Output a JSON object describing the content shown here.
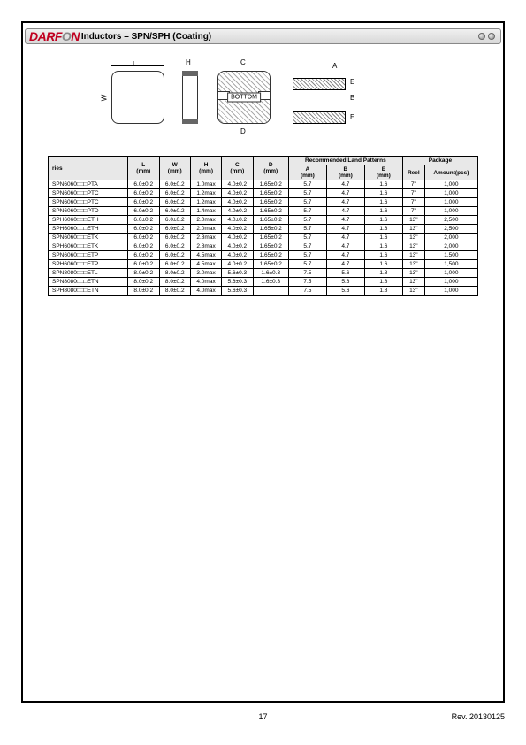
{
  "header": {
    "logo_text_pre": "DARF",
    "logo_text_o": "O",
    "logo_text_post": "N",
    "title": "Inductors – SPN/SPH (Coating)"
  },
  "diagram": {
    "labels": {
      "L": "L",
      "W": "W",
      "H": "H",
      "C": "C",
      "D": "D",
      "A": "A",
      "B": "B",
      "E": "E"
    },
    "bottom_text": "BOTTOM"
  },
  "table": {
    "headers": {
      "ries": "ries",
      "L": "L\n(mm)",
      "W": "W\n(mm)",
      "H": "H\n(mm)",
      "C": "C\n(mm)",
      "D": "D\n(mm)",
      "land_group": "Recommended Land Patterns",
      "A": "A\n(mm)",
      "B": "B\n(mm)",
      "E": "E\n(mm)",
      "pkg_group": "Package",
      "Reel": "Reel",
      "Amount": "Amount(pcs)"
    },
    "rows": [
      {
        "ries": "SPN6060□□□PTA",
        "L": "6.0±0.2",
        "W": "6.0±0.2",
        "H": "1.0max",
        "C": "4.0±0.2",
        "D": "1.65±0.2",
        "A": "5.7",
        "B": "4.7",
        "E": "1.6",
        "Reel": "7\"",
        "Amount": "1,000"
      },
      {
        "ries": "SPN6060□□□PTC",
        "L": "6.0±0.2",
        "W": "6.0±0.2",
        "H": "1.2max",
        "C": "4.0±0.2",
        "D": "1.65±0.2",
        "A": "5.7",
        "B": "4.7",
        "E": "1.6",
        "Reel": "7\"",
        "Amount": "1,000"
      },
      {
        "ries": "SPN6060□□□PTC",
        "L": "6.0±0.2",
        "W": "6.0±0.2",
        "H": "1.2max",
        "C": "4.0±0.2",
        "D": "1.65±0.2",
        "A": "5.7",
        "B": "4.7",
        "E": "1.6",
        "Reel": "7\"",
        "Amount": "1,000"
      },
      {
        "ries": "SPN6060□□□PTD",
        "L": "6.0±0.2",
        "W": "6.0±0.2",
        "H": "1.4max",
        "C": "4.0±0.2",
        "D": "1.65±0.2",
        "A": "5.7",
        "B": "4.7",
        "E": "1.6",
        "Reel": "7\"",
        "Amount": "1,000"
      },
      {
        "ries": "SPH6060□□□ETH",
        "L": "6.0±0.2",
        "W": "6.0±0.2",
        "H": "2.0max",
        "C": "4.0±0.2",
        "D": "1.65±0.2",
        "A": "5.7",
        "B": "4.7",
        "E": "1.6",
        "Reel": "13\"",
        "Amount": "2,500"
      },
      {
        "ries": "SPH6060□□□ETH",
        "L": "6.0±0.2",
        "W": "6.0±0.2",
        "H": "2.0max",
        "C": "4.0±0.2",
        "D": "1.65±0.2",
        "A": "5.7",
        "B": "4.7",
        "E": "1.6",
        "Reel": "13\"",
        "Amount": "2,500"
      },
      {
        "ries": "SPN6060□□□ETK",
        "L": "6.0±0.2",
        "W": "6.0±0.2",
        "H": "2.8max",
        "C": "4.0±0.2",
        "D": "1.65±0.2",
        "A": "5.7",
        "B": "4.7",
        "E": "1.6",
        "Reel": "13\"",
        "Amount": "2,000"
      },
      {
        "ries": "SPH6060□□□ETK",
        "L": "6.0±0.2",
        "W": "6.0±0.2",
        "H": "2.8max",
        "C": "4.0±0.2",
        "D": "1.65±0.2",
        "A": "5.7",
        "B": "4.7",
        "E": "1.6",
        "Reel": "13\"",
        "Amount": "2,000"
      },
      {
        "ries": "SPN6060□□□ETP",
        "L": "6.0±0.2",
        "W": "6.0±0.2",
        "H": "4.5max",
        "C": "4.0±0.2",
        "D": "1.65±0.2",
        "A": "5.7",
        "B": "4.7",
        "E": "1.6",
        "Reel": "13\"",
        "Amount": "1,500"
      },
      {
        "ries": "SPH6060□□□ETP",
        "L": "6.0±0.2",
        "W": "6.0±0.2",
        "H": "4.5max",
        "C": "4.0±0.2",
        "D": "1.65±0.2",
        "A": "5.7",
        "B": "4.7",
        "E": "1.6",
        "Reel": "13\"",
        "Amount": "1,500"
      },
      {
        "ries": "SPN8080□□□ETL",
        "L": "8.0±0.2",
        "W": "8.0±0.2",
        "H": "3.0max",
        "C": "5.6±0.3",
        "D": "1.6±0.3",
        "A": "7.5",
        "B": "5.6",
        "E": "1.8",
        "Reel": "13\"",
        "Amount": "1,000"
      },
      {
        "ries": "SPN8080□□□ETN",
        "L": "8.0±0.2",
        "W": "8.0±0.2",
        "H": "4.0max",
        "C": "5.6±0.3",
        "D": "1.6±0.3",
        "A": "7.5",
        "B": "5.6",
        "E": "1.8",
        "Reel": "13\"",
        "Amount": "1,000"
      },
      {
        "ries": "SPH8080□□□ETN",
        "L": "8.0±0.2",
        "W": "8.0±0.2",
        "H": "4.0max",
        "C": "5.6±0.3",
        "D": "",
        "A": "7.5",
        "B": "5.6",
        "E": "1.8",
        "Reel": "13\"",
        "Amount": "1,000"
      }
    ]
  },
  "footer": {
    "page": "17",
    "rev": "Rev. 20130125"
  }
}
